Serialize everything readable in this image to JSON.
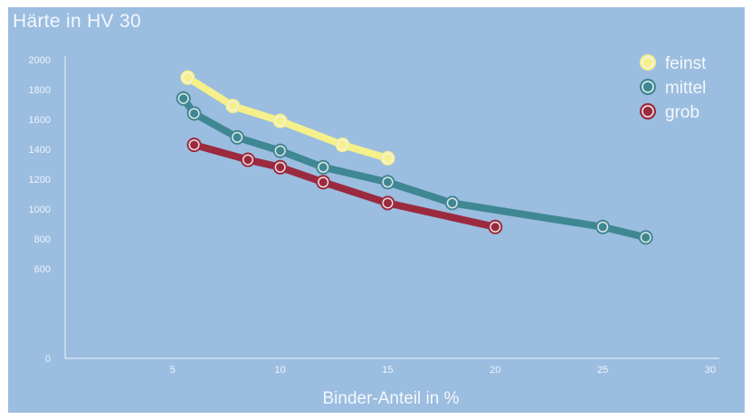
{
  "chart_data": {
    "type": "line",
    "title": "Härte in HV 30",
    "xlabel": "Binder-Anteil in %",
    "ylabel": "",
    "xlim": [
      0,
      30
    ],
    "ylim": [
      0,
      2000
    ],
    "x_ticks": [
      5,
      10,
      15,
      20,
      25,
      30
    ],
    "y_ticks": [
      0,
      600,
      800,
      1000,
      1200,
      1400,
      1600,
      1800,
      2000
    ],
    "grid": false,
    "legend": "top-right",
    "series": [
      {
        "name": "feinst",
        "color": "#f6f08a",
        "points": [
          [
            5.7,
            1880
          ],
          [
            7.8,
            1690
          ],
          [
            10.0,
            1590
          ],
          [
            12.9,
            1430
          ],
          [
            15.0,
            1340
          ]
        ]
      },
      {
        "name": "mittel",
        "color": "#3f8793",
        "points": [
          [
            5.5,
            1740
          ],
          [
            6.0,
            1640
          ],
          [
            8.0,
            1480
          ],
          [
            10.0,
            1390
          ],
          [
            12.0,
            1280
          ],
          [
            15.0,
            1180
          ],
          [
            18.0,
            1040
          ],
          [
            25.0,
            880
          ],
          [
            27.0,
            810
          ]
        ]
      },
      {
        "name": "grob",
        "color": "#9b2a3e",
        "points": [
          [
            6.0,
            1430
          ],
          [
            8.5,
            1330
          ],
          [
            10.0,
            1280
          ],
          [
            12.0,
            1180
          ],
          [
            15.0,
            1040
          ],
          [
            20.0,
            880
          ]
        ]
      }
    ]
  }
}
